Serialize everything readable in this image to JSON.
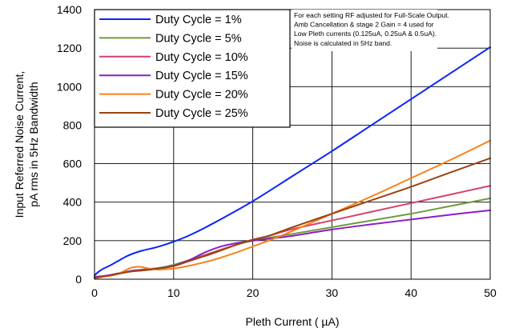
{
  "chart_data": {
    "type": "line",
    "title": "",
    "xlabel": "Pleth Current ( µA)",
    "ylabel_lines": [
      "Input Referred Noise Current,",
      "pA rms in 5Hz Bandwidth"
    ],
    "xlim": [
      0,
      50
    ],
    "ylim": [
      0,
      1400
    ],
    "x_ticks": [
      0,
      10,
      20,
      30,
      40,
      50
    ],
    "y_ticks": [
      0,
      200,
      400,
      600,
      800,
      1000,
      1200,
      1400
    ],
    "grid": true,
    "legend_position": "top-left",
    "annotation": [
      "For each setting RF adjusted for Full-Scale Output.",
      "Amb Cancellation & stage 2 Gain = 4 used for",
      "Low Pleth currents (0.125uA, 0.25uA & 0.5uA).",
      "Noise is calculated in 5Hz band."
    ],
    "series": [
      {
        "name": "Duty Cycle = 1%",
        "color": "#0b24fb",
        "x": [
          0,
          0.5,
          1,
          2,
          3,
          4,
          5,
          6,
          8,
          10,
          12,
          15,
          20,
          25,
          30,
          35,
          40,
          45,
          50
        ],
        "y": [
          20,
          38,
          52,
          72,
          95,
          118,
          135,
          148,
          168,
          195,
          228,
          290,
          405,
          535,
          665,
          800,
          935,
          1070,
          1205
        ]
      },
      {
        "name": "Duty Cycle = 5%",
        "color": "#6f9b3c",
        "x": [
          0,
          0.5,
          1,
          2,
          3,
          4,
          5,
          6,
          8,
          10,
          12,
          15,
          18,
          20,
          22,
          25,
          30,
          35,
          40,
          45,
          50
        ],
        "y": [
          8,
          10,
          13,
          20,
          28,
          38,
          45,
          50,
          58,
          75,
          100,
          140,
          180,
          200,
          215,
          235,
          270,
          305,
          340,
          380,
          420
        ]
      },
      {
        "name": "Duty Cycle = 10%",
        "color": "#d3426c",
        "x": [
          0,
          0.5,
          1,
          2,
          3,
          4,
          5,
          6,
          8,
          10,
          12,
          15,
          18,
          20,
          22,
          25,
          30,
          35,
          40,
          45,
          50
        ],
        "y": [
          10,
          12,
          15,
          22,
          30,
          38,
          42,
          45,
          55,
          70,
          95,
          140,
          180,
          205,
          225,
          260,
          305,
          350,
          395,
          440,
          485
        ]
      },
      {
        "name": "Duty Cycle = 15%",
        "color": "#8b1ec4",
        "x": [
          0,
          0.5,
          1,
          2,
          3,
          4,
          5,
          6,
          8,
          10,
          12,
          14,
          16,
          18,
          20,
          22,
          25,
          30,
          35,
          40,
          45,
          50
        ],
        "y": [
          12,
          14,
          16,
          22,
          30,
          38,
          45,
          48,
          55,
          70,
          100,
          140,
          170,
          188,
          200,
          210,
          225,
          258,
          285,
          310,
          335,
          358
        ]
      },
      {
        "name": "Duty Cycle = 20%",
        "color": "#f9801a",
        "x": [
          0,
          0.5,
          1,
          2,
          3,
          4,
          4.5,
          5,
          5.5,
          6,
          7,
          8,
          9,
          10,
          12,
          15,
          18,
          20,
          22,
          25,
          30,
          35,
          40,
          45,
          50
        ],
        "y": [
          5,
          8,
          12,
          18,
          28,
          48,
          58,
          63,
          65,
          63,
          55,
          50,
          52,
          55,
          70,
          100,
          140,
          170,
          200,
          250,
          340,
          430,
          525,
          620,
          720
        ]
      },
      {
        "name": "Duty Cycle = 25%",
        "color": "#9a4312",
        "x": [
          0,
          0.5,
          1,
          2,
          3,
          4,
          5,
          6,
          8,
          10,
          12,
          15,
          18,
          20,
          22,
          25,
          30,
          35,
          40,
          45,
          50
        ],
        "y": [
          8,
          10,
          14,
          20,
          28,
          36,
          42,
          45,
          55,
          68,
          95,
          135,
          180,
          205,
          225,
          270,
          340,
          410,
          480,
          555,
          628
        ]
      }
    ]
  }
}
